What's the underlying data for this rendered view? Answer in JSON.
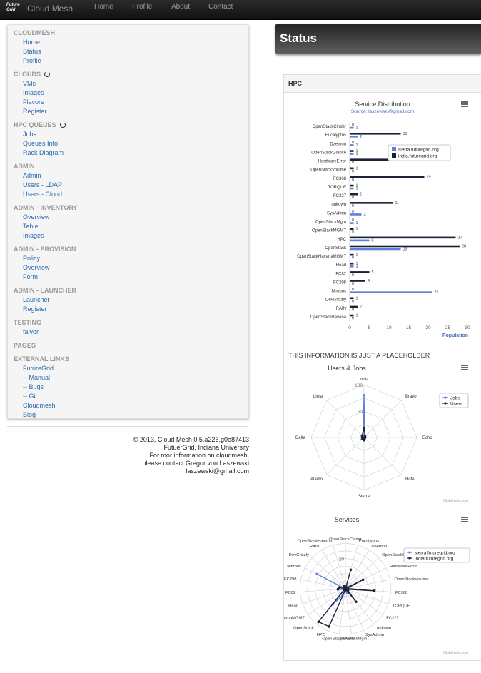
{
  "navbar": {
    "logo_line1": "Future",
    "logo_line2": "Grid",
    "brand": "Cloud Mesh",
    "items": [
      "Home",
      "Profile",
      "About",
      "Contact"
    ]
  },
  "sidebar": {
    "sections": [
      {
        "header": "CLOUDMESH",
        "spinner": false,
        "links": [
          "Home",
          "Status",
          "Profile"
        ]
      },
      {
        "header": "CLOUDS",
        "spinner": true,
        "links": [
          "VMs",
          "Images",
          "Flavors",
          "Register"
        ]
      },
      {
        "header": "HPC QUEUES",
        "spinner": true,
        "links": [
          "Jobs",
          "Queues Info",
          "Rack Diagram"
        ]
      },
      {
        "header": "ADMIN",
        "spinner": false,
        "links": [
          "Admin",
          "Users - LDAP",
          "Users - Cloud"
        ]
      },
      {
        "header": "ADMIN - INVENTORY",
        "spinner": false,
        "links": [
          "Overview",
          "Table",
          "Images"
        ]
      },
      {
        "header": "ADMIN - PROVISION",
        "spinner": false,
        "links": [
          "Policy",
          "Overview",
          "Form"
        ]
      },
      {
        "header": "ADMIN - LAUNCHER",
        "spinner": false,
        "links": [
          "Launcher",
          "Register"
        ]
      },
      {
        "header": "TESTING",
        "spinner": false,
        "links": [
          "faivor"
        ]
      },
      {
        "header": "PAGES",
        "spinner": false,
        "links": []
      },
      {
        "header": "EXTERNAL LINKS",
        "spinner": false,
        "links": [
          "FutureGrid",
          "-- Manual",
          "-- Bugs",
          "-- Git",
          "Cloudmesh",
          "Blog"
        ]
      }
    ]
  },
  "footer": {
    "lines": [
      "© 2013, Cloud Mesh 0.5.a226.g0e87413",
      "FutuerGrid, Indiana University",
      "For mor information on cloudmesh,",
      "please contact Gregor von Laszewski",
      "laszewski@gmail.com"
    ]
  },
  "status": {
    "title": "Status"
  },
  "panel": {
    "title": "HPC",
    "placeholder": "THIS INFORMATION IS JUST A PLACEHOLDER"
  },
  "icons": {
    "menu": "menu-icon",
    "spinner": "spinner-icon",
    "logo": "futuregrid-logo"
  },
  "chart_data": [
    {
      "type": "bar",
      "orientation": "horizontal",
      "title": "Service Distribution",
      "subtitle": "Source: laszewski@gmail.com",
      "ylabel": "Population",
      "xlim": [
        0,
        30
      ],
      "ticks": [
        0,
        5,
        10,
        15,
        20,
        25,
        30
      ],
      "legend_position": "top-right",
      "categories": [
        "OpenStackCinder",
        "Eucalyptus",
        "Daemon",
        "OpenStackGlance",
        "HardwareError",
        "OpenStackVolume",
        "FC368",
        "TORQUE",
        "FC227",
        "unkown",
        "SysAdmin",
        "OpenStackMgm",
        "OpenStackMGMT",
        "HPC",
        "OpenStack",
        "OpenStackHavanaMGMT",
        "Head",
        "FC82",
        "FC298",
        "Nimbus",
        "DevGrizzly",
        "RAIN",
        "OpenStackHavana"
      ],
      "series": [
        {
          "name": "sierra.futuregrid.org",
          "color": "#5b82d4",
          "values": [
            1,
            2,
            1,
            1,
            0,
            0,
            0,
            1,
            0,
            0,
            3,
            1,
            0,
            5,
            13,
            0,
            1,
            0,
            0,
            21,
            0,
            0,
            0
          ]
        },
        {
          "name": "india.futuregrid.org",
          "color": "#1a2238",
          "values": [
            0,
            13,
            0,
            1,
            13,
            1,
            19,
            1,
            2,
            11,
            0,
            0,
            1,
            27,
            28,
            1,
            1,
            5,
            4,
            0,
            1,
            2,
            1
          ]
        }
      ]
    },
    {
      "type": "radar",
      "title": "Users & Jobs",
      "axes": [
        "India",
        "Bravo",
        "Echo",
        "Hotel",
        "Sierra",
        "Alamo",
        "Delta",
        "Lima"
      ],
      "rmax": 100,
      "tick_labels": [
        "100",
        "50",
        "0"
      ],
      "legend_position": "right",
      "credit": "Highcharts.com",
      "series": [
        {
          "name": "Jobs",
          "color": "#5b82d4",
          "values": [
            80,
            2,
            1,
            1,
            2,
            1,
            1,
            2
          ]
        },
        {
          "name": "Users",
          "color": "#1a2238",
          "values": [
            18,
            3,
            2,
            2,
            5,
            4,
            3,
            5
          ]
        }
      ]
    },
    {
      "type": "radar",
      "title": "Services",
      "axes": [
        "OpenStackCinder",
        "Eucalyptus",
        "Daemon",
        "OpenStackGlance",
        "HardwareError",
        "OpenStackVolume",
        "FC368",
        "TORQUE",
        "FC227",
        "unkown",
        "SysAdmin",
        "OpenStackMgm",
        "OpenStackMGMT",
        "HPC",
        "OpenStack",
        "OpenStackHavanaMGMT",
        "Head",
        "FC82",
        "FC298",
        "Nimbus",
        "DevGrizzly",
        "RAIN",
        "OpenStackHavana"
      ],
      "rmax": 30,
      "tick_labels": [
        "20"
      ],
      "legend_position": "top-right",
      "credit": "Highcharts.com",
      "series": [
        {
          "name": "sierra.futuregrid.org",
          "color": "#5b82d4",
          "values": [
            1,
            2,
            1,
            1,
            0,
            0,
            0,
            1,
            0,
            0,
            3,
            1,
            0,
            5,
            13,
            0,
            1,
            0,
            0,
            21,
            0,
            0,
            0
          ]
        },
        {
          "name": "india.futuregrid.org",
          "color": "#1a2238",
          "values": [
            0,
            13,
            0,
            1,
            13,
            1,
            19,
            1,
            2,
            11,
            0,
            0,
            1,
            27,
            28,
            1,
            1,
            5,
            4,
            0,
            1,
            2,
            1
          ]
        }
      ]
    }
  ]
}
